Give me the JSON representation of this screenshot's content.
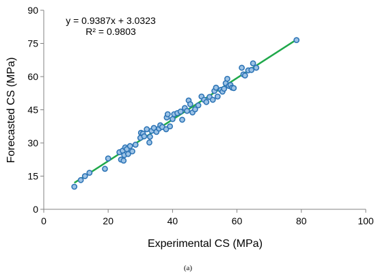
{
  "caption": "(a)",
  "chart_data": {
    "type": "scatter",
    "xlabel": "Experimental CS (MPa)",
    "ylabel": "Forecasted CS (MPa)",
    "xlim": [
      0,
      100
    ],
    "ylim": [
      0,
      90
    ],
    "xticks": [
      0,
      20,
      40,
      60,
      80,
      100
    ],
    "yticks": [
      0,
      15,
      30,
      45,
      60,
      75,
      90
    ],
    "grid": false,
    "legend": "none",
    "equation": "y = 0.9387x + 3.0323",
    "r_squared": "R² = 0.9803",
    "trendline": {
      "slope": 0.9387,
      "intercept": 3.0323,
      "x_range": [
        9.5,
        78.5
      ]
    },
    "colors": {
      "marker_fill": "#9dc3e6",
      "marker_edge": "#2e75b6",
      "trendline": "#1fa84a"
    },
    "points": [
      [
        9.5,
        10.2
      ],
      [
        11.5,
        13.2
      ],
      [
        12.8,
        15.0
      ],
      [
        14.2,
        16.5
      ],
      [
        19.0,
        18.3
      ],
      [
        20.0,
        23.0
      ],
      [
        23.5,
        25.8
      ],
      [
        24.0,
        22.5
      ],
      [
        24.5,
        26.5
      ],
      [
        24.8,
        22.0
      ],
      [
        25.0,
        24.5
      ],
      [
        25.3,
        28.0
      ],
      [
        25.8,
        27.2
      ],
      [
        26.2,
        25.0
      ],
      [
        26.8,
        28.6
      ],
      [
        27.5,
        26.2
      ],
      [
        28.5,
        29.2
      ],
      [
        30.0,
        32.3
      ],
      [
        30.2,
        34.6
      ],
      [
        30.8,
        34.2
      ],
      [
        31.2,
        33.0
      ],
      [
        32.0,
        36.2
      ],
      [
        32.8,
        30.2
      ],
      [
        33.0,
        32.8
      ],
      [
        33.5,
        35.5
      ],
      [
        34.2,
        36.8
      ],
      [
        35.0,
        35.0
      ],
      [
        35.8,
        36.5
      ],
      [
        36.2,
        38.0
      ],
      [
        36.8,
        37.2
      ],
      [
        38.0,
        36.2
      ],
      [
        38.2,
        41.5
      ],
      [
        38.5,
        43.0
      ],
      [
        39.2,
        37.5
      ],
      [
        40.0,
        40.8
      ],
      [
        40.5,
        43.0
      ],
      [
        41.5,
        43.5
      ],
      [
        42.5,
        44.2
      ],
      [
        43.0,
        40.5
      ],
      [
        43.8,
        45.8
      ],
      [
        44.5,
        44.5
      ],
      [
        45.0,
        49.2
      ],
      [
        45.5,
        47.5
      ],
      [
        46.2,
        43.8
      ],
      [
        47.0,
        45.2
      ],
      [
        48.0,
        47.0
      ],
      [
        49.0,
        51.0
      ],
      [
        49.8,
        49.5
      ],
      [
        50.5,
        48.5
      ],
      [
        51.5,
        50.8
      ],
      [
        52.5,
        49.5
      ],
      [
        53.0,
        53.5
      ],
      [
        53.5,
        55.0
      ],
      [
        54.0,
        51.0
      ],
      [
        55.0,
        54.0
      ],
      [
        55.5,
        53.2
      ],
      [
        56.0,
        54.5
      ],
      [
        56.5,
        57.0
      ],
      [
        57.0,
        59.0
      ],
      [
        57.5,
        55.8
      ],
      [
        58.0,
        56.2
      ],
      [
        58.5,
        55.0
      ],
      [
        59.0,
        54.8
      ],
      [
        61.5,
        64.0
      ],
      [
        62.0,
        61.0
      ],
      [
        62.5,
        60.5
      ],
      [
        63.5,
        62.8
      ],
      [
        64.5,
        63.0
      ],
      [
        65.0,
        66.0
      ],
      [
        66.0,
        64.0
      ],
      [
        78.5,
        76.5
      ]
    ]
  }
}
